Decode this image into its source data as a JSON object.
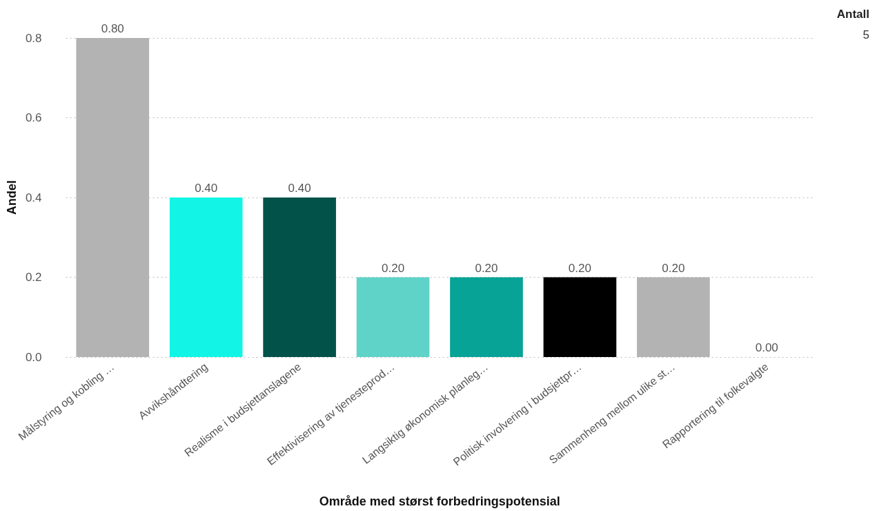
{
  "chart_data": {
    "type": "bar",
    "xlabel": "Område med størst forbedringspotensial",
    "ylabel": "Andel",
    "categories": [
      "Målstyring og kobling …",
      "Avvikshåndtering",
      "Realisme i budsjettanslagene",
      "Effektivisering av tjenesteprod…",
      "Langsiktig økonomisk planleg…",
      "Politisk involvering i budsjettpr…",
      "Sammenheng mellom ulike st…",
      "Rapportering til folkevalgte"
    ],
    "values": [
      0.8,
      0.4,
      0.4,
      0.2,
      0.2,
      0.2,
      0.2,
      0
    ],
    "colors": [
      "#b3b3b3",
      "#12f5e6",
      "#03524a",
      "#5fd3c8",
      "#07a396",
      "#000000",
      "#b3b3b3",
      "#b3b3b3"
    ],
    "value_labels": [
      "0.80",
      "0.40",
      "0.40",
      "0.20",
      "0.20",
      "0.20",
      "0.20",
      "0.00"
    ],
    "ylim": [
      0,
      0.8
    ],
    "yticks": [
      {
        "value": 0,
        "label": "0.0"
      },
      {
        "value": 0.2,
        "label": "0.2"
      },
      {
        "value": 0.4,
        "label": "0.4"
      },
      {
        "value": 0.6,
        "label": "0.6"
      },
      {
        "value": 0.8,
        "label": "0.8"
      }
    ],
    "grid": "y",
    "annotations": [
      "Antall",
      "5"
    ]
  }
}
